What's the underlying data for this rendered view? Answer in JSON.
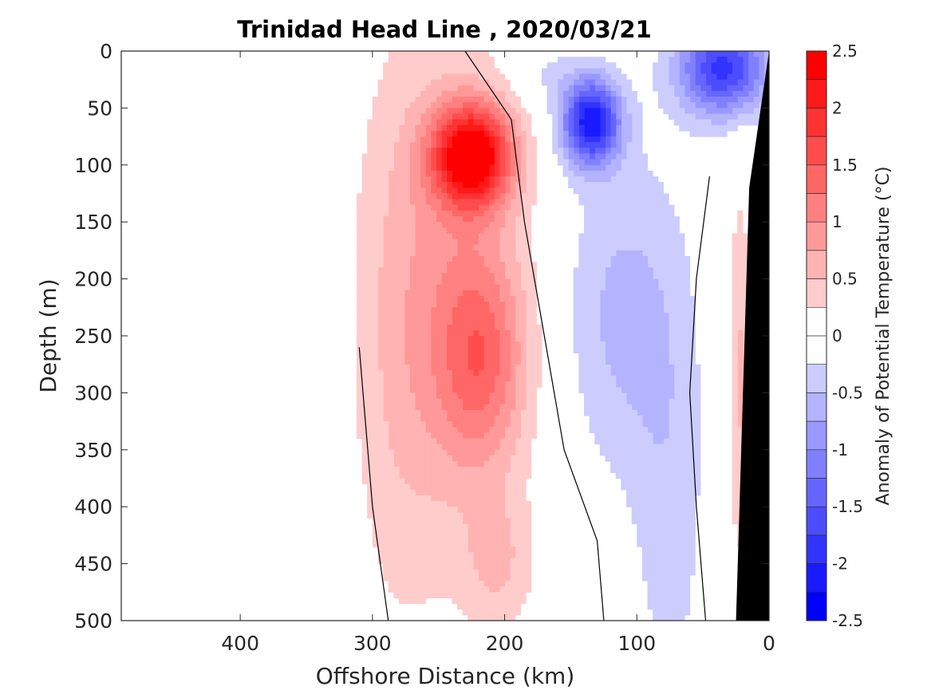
{
  "chart_data": {
    "type": "heatmap",
    "subtype": "filled-contour-section",
    "title": "Trinidad Head Line , 2020/03/21",
    "xlabel": "Offshore Distance (km)",
    "ylabel": "Depth (m)",
    "xlim": [
      490,
      0
    ],
    "ylim": [
      0,
      500
    ],
    "x_reversed": true,
    "y_reversed": true,
    "xticks": [
      400,
      300,
      200,
      100,
      0
    ],
    "yticks": [
      0,
      50,
      100,
      150,
      200,
      250,
      300,
      350,
      400,
      450,
      500
    ],
    "colorbar": {
      "label": "Anomaly of Potential Temperature (°C)",
      "range": [
        -2.5,
        2.5
      ],
      "step": 0.25,
      "ticks": [
        2.5,
        2,
        1.5,
        1,
        0.5,
        0,
        -0.5,
        -1,
        -1.5,
        -2,
        -2.5
      ],
      "levels": [
        {
          "lo": 2.25,
          "hi": 2.5,
          "color": "#ff0000"
        },
        {
          "lo": 2.0,
          "hi": 2.25,
          "color": "#ff1a1a"
        },
        {
          "lo": 1.75,
          "hi": 2.0,
          "color": "#ff3333"
        },
        {
          "lo": 1.5,
          "hi": 1.75,
          "color": "#ff4d4d"
        },
        {
          "lo": 1.25,
          "hi": 1.5,
          "color": "#ff6666"
        },
        {
          "lo": 1.0,
          "hi": 1.25,
          "color": "#ff8080"
        },
        {
          "lo": 0.75,
          "hi": 1.0,
          "color": "#ff9999"
        },
        {
          "lo": 0.5,
          "hi": 0.75,
          "color": "#ffb3b3"
        },
        {
          "lo": 0.25,
          "hi": 0.5,
          "color": "#ffcccc"
        },
        {
          "lo": 0.0,
          "hi": 0.25,
          "color": "#ffffff"
        },
        {
          "lo": -0.25,
          "hi": 0.0,
          "color": "#ffffff"
        },
        {
          "lo": -0.5,
          "hi": -0.25,
          "color": "#ccccff"
        },
        {
          "lo": -0.75,
          "hi": -0.5,
          "color": "#b3b3ff"
        },
        {
          "lo": -1.0,
          "hi": -0.75,
          "color": "#9999ff"
        },
        {
          "lo": -1.25,
          "hi": -1.0,
          "color": "#8080ff"
        },
        {
          "lo": -1.5,
          "hi": -1.25,
          "color": "#6666ff"
        },
        {
          "lo": -1.75,
          "hi": -1.5,
          "color": "#4d4dff"
        },
        {
          "lo": -2.0,
          "hi": -1.75,
          "color": "#3333ff"
        },
        {
          "lo": -2.25,
          "hi": -2.0,
          "color": "#1a1aff"
        },
        {
          "lo": -2.5,
          "hi": -2.25,
          "color": "#0000ff"
        }
      ]
    },
    "data_extent_km": [
      310,
      0
    ],
    "features": [
      {
        "name": "warm core",
        "x_km": 225,
        "depth_m": 95,
        "anomaly": 2.2
      },
      {
        "name": "warm tongue",
        "x_km": 215,
        "depth_m": 270,
        "anomaly": 1.0
      },
      {
        "name": "cold core near 135 km",
        "x_km": 135,
        "depth_m": 65,
        "anomaly": -2.0
      },
      {
        "name": "cold surface patch near 35 km",
        "x_km": 35,
        "depth_m": 15,
        "anomaly": -1.7
      },
      {
        "name": "nearshore warm band",
        "x_km": 25,
        "depth_m": 300,
        "anomaly": 0.5
      }
    ],
    "zero_contours_km": [
      {
        "name": "offshore zero contour",
        "points": [
          [
            310,
            260
          ],
          [
            305,
            330
          ],
          [
            300,
            400
          ],
          [
            288,
            500
          ]
        ]
      },
      {
        "name": "mid zero contour",
        "points": [
          [
            230,
            0
          ],
          [
            195,
            60
          ],
          [
            185,
            150
          ],
          [
            170,
            250
          ],
          [
            155,
            350
          ],
          [
            130,
            430
          ],
          [
            125,
            500
          ]
        ]
      },
      {
        "name": "inshore zero contour",
        "points": [
          [
            45,
            110
          ],
          [
            55,
            200
          ],
          [
            60,
            300
          ],
          [
            55,
            400
          ],
          [
            48,
            500
          ]
        ]
      }
    ],
    "bathymetry": {
      "name": "continental shelf / slope",
      "color": "#000000",
      "points": [
        [
          0,
          0
        ],
        [
          0,
          500
        ],
        [
          25,
          500
        ],
        [
          15,
          120
        ]
      ]
    }
  }
}
